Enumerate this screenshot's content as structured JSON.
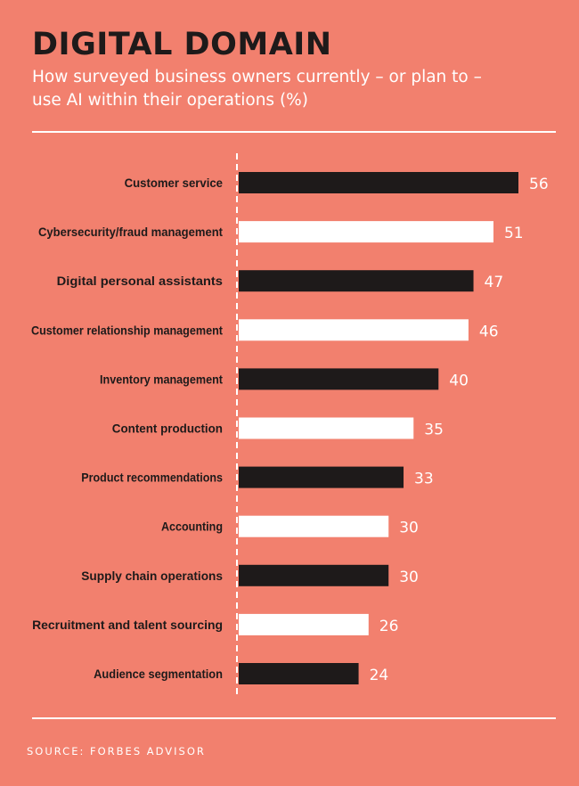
{
  "header": {
    "title": "DIGITAL DOMAIN",
    "subtitle": "How surveyed business owners currently – or plan to – use AI within their operations (%)"
  },
  "footer": {
    "source": "SOURCE: FORBES ADVISOR"
  },
  "colors": {
    "background": "#F2806E",
    "bar_dark": "#1E1A1A",
    "bar_light": "#FFFFFF",
    "label_text": "#1E1A1A",
    "value_text": "#FFFFFF"
  },
  "chart_data": {
    "type": "bar",
    "orientation": "horizontal",
    "categories": [
      "Customer service",
      "Cybersecurity/fraud management",
      "Digital personal assistants",
      "Customer relationship management",
      "Inventory management",
      "Content production",
      "Product recommendations",
      "Accounting",
      "Supply chain operations",
      "Recruitment and talent sourcing",
      "Audience segmentation"
    ],
    "values": [
      56,
      51,
      47,
      46,
      40,
      35,
      33,
      30,
      30,
      26,
      24
    ],
    "bar_colors": [
      "#1E1A1A",
      "#FFFFFF",
      "#1E1A1A",
      "#FFFFFF",
      "#1E1A1A",
      "#FFFFFF",
      "#1E1A1A",
      "#FFFFFF",
      "#1E1A1A",
      "#FFFFFF",
      "#1E1A1A"
    ],
    "xlim": [
      0,
      56
    ],
    "data_labels": true,
    "grid": false
  }
}
